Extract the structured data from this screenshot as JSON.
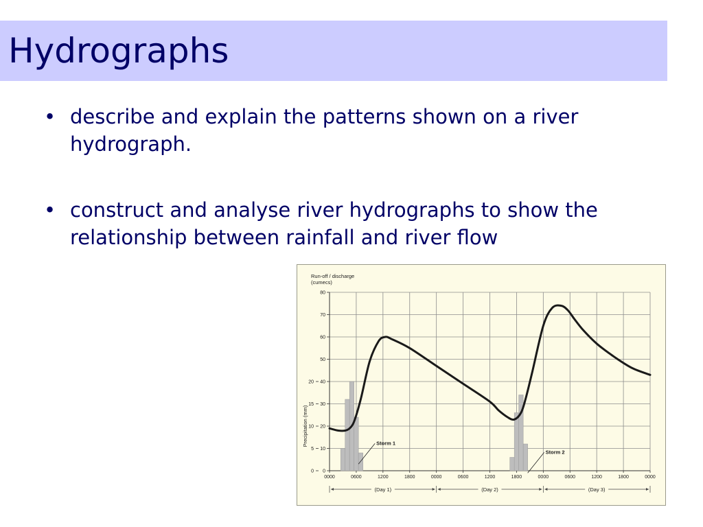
{
  "slide": {
    "title": "Hydrographs",
    "bullet_symbol": "•",
    "bullets": [
      "describe and explain the patterns shown on a river hydrograph.",
      "construct and analyse river hydrographs to show the relationship between rainfall and river flow"
    ]
  },
  "colors": {
    "title_band": "#ccccff",
    "text": "#000066",
    "figure_background": "#fdfbe6",
    "grid": "#8c8c8c",
    "rain_bars": "#bdbdbd",
    "hydrograph_line": "#1a1a1a"
  },
  "chart_data": {
    "type": "line",
    "ylabel": "Run-off / discharge (cumecs)",
    "ylim": [
      0,
      80
    ],
    "y_ticks": [
      "80",
      "70",
      "60",
      "50",
      "40",
      "30",
      "20",
      "10",
      "0"
    ],
    "y2label": "Precipitation (mm)",
    "y2lim": [
      0,
      20
    ],
    "y2_ticks": [
      "20",
      "15",
      "10",
      "5",
      "0"
    ],
    "x_unit": "hours since 0000 on Day 1",
    "xlim": [
      0,
      72
    ],
    "x_tick_labels": [
      "0000",
      "0600",
      "1200",
      "1800",
      "0000",
      "0600",
      "1200",
      "1800",
      "0000",
      "0600",
      "1200",
      "1800",
      "0000"
    ],
    "day_labels": [
      "(Day 1)",
      "(Day 2)",
      "(Day 3)"
    ],
    "grid": true,
    "series": [
      {
        "kind": "line",
        "axis": "discharge",
        "x": [
          0,
          2,
          3.5,
          4.5,
          5.5,
          7,
          9,
          11,
          12.5,
          14,
          18,
          24,
          30,
          36,
          38,
          40,
          41.5,
          43,
          44,
          45.5,
          48,
          50,
          52,
          53.5,
          55,
          57,
          60,
          64,
          68,
          72
        ],
        "values": [
          19,
          18,
          18,
          19,
          22,
          32,
          49,
          58,
          60,
          59,
          55,
          47,
          39,
          31,
          27,
          24,
          23,
          26,
          32,
          44,
          65,
          73,
          74,
          72,
          68,
          63,
          57,
          51,
          46,
          43
        ]
      },
      {
        "kind": "bar",
        "axis": "precipitation",
        "bar_width_hours": 1,
        "x": [
          3,
          4,
          5,
          6,
          7,
          41,
          42,
          43,
          44
        ],
        "values": [
          5,
          16,
          20,
          12,
          4,
          3,
          13,
          17,
          6
        ]
      }
    ],
    "annotations": [
      {
        "text": "Storm 1",
        "x": 6.5,
        "y": 5.5
      },
      {
        "text": "Storm 2",
        "x": 44.5,
        "y": 3.5
      }
    ]
  }
}
